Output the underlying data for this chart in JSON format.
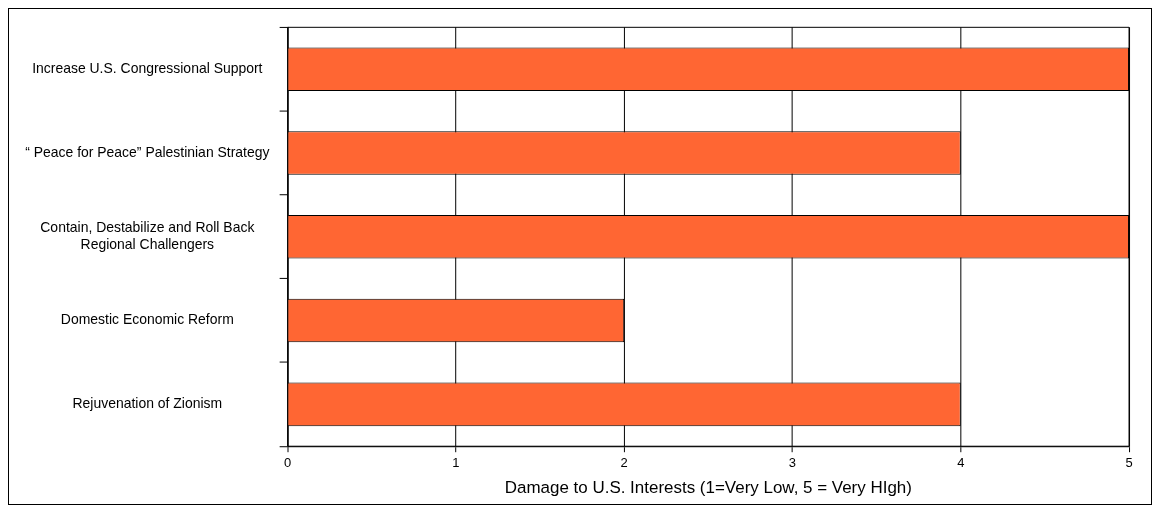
{
  "chart_data": {
    "type": "bar",
    "orientation": "horizontal",
    "xlabel": "Damage to U.S. Interests (1=Very Low, 5 = Very HIgh)",
    "categories": [
      "Increase U.S. Congressional Support",
      "“ Peace for Peace” Palestinian Strategy",
      "Contain, Destabilize and Roll Back Regional Challengers",
      "Domestic Economic Reform",
      "Rejuvenation of Zionism"
    ],
    "values": [
      5,
      4,
      5,
      2,
      4
    ],
    "color": "#ff6633",
    "xlim": [
      0,
      5
    ],
    "xticks": [
      0,
      1,
      2,
      3,
      4,
      5
    ],
    "grid": "x",
    "legend": false
  }
}
